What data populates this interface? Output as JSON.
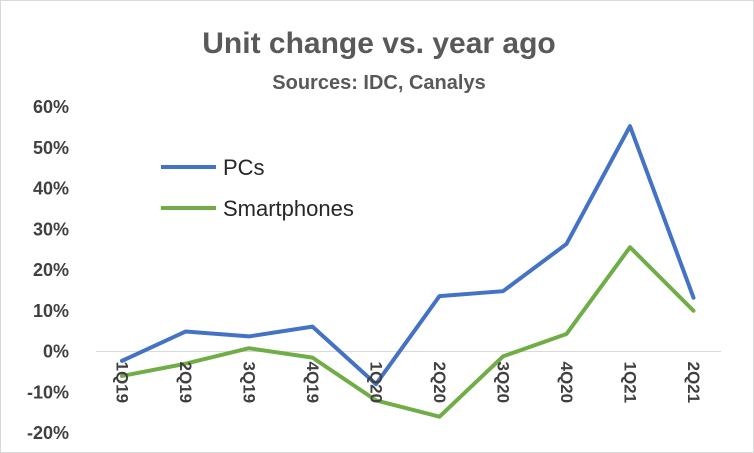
{
  "chart_data": {
    "type": "line",
    "title": "Unit change vs. year ago",
    "subtitle": "Sources: IDC, Canalys",
    "categories": [
      "1Q19",
      "2Q19",
      "3Q19",
      "4Q19",
      "1Q20",
      "2Q20",
      "3Q20",
      "4Q20",
      "1Q21",
      "2Q21"
    ],
    "ylim": [
      -20,
      60
    ],
    "yticks": [
      60,
      50,
      40,
      30,
      20,
      10,
      0,
      -10,
      -20
    ],
    "ytick_labels": [
      "60%",
      "50%",
      "40%",
      "30%",
      "20%",
      "10%",
      "0%",
      "-10%",
      "-20%"
    ],
    "grid": false,
    "legend_position": "top-left",
    "series": [
      {
        "name": "PCs",
        "color": "#4472c4",
        "values": [
          -2.3,
          4.9,
          3.7,
          6.1,
          -8.0,
          13.6,
          14.8,
          26.4,
          55.3,
          13.2
        ]
      },
      {
        "name": "Smartphones",
        "color": "#70ad47",
        "values": [
          -6.0,
          -3.0,
          0.8,
          -1.5,
          -12.0,
          -16.0,
          -1.2,
          4.3,
          25.6,
          10.0
        ]
      }
    ]
  }
}
